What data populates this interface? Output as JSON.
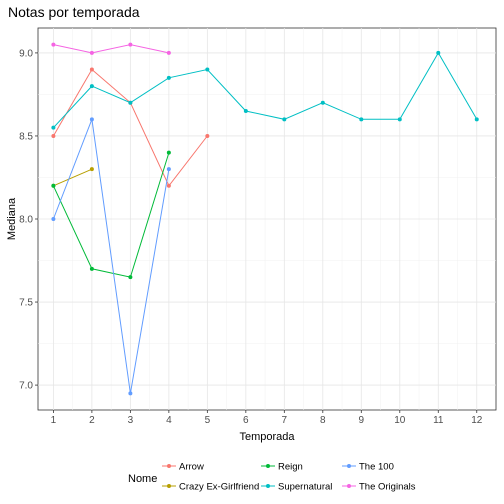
{
  "chart_data": {
    "type": "line",
    "title": "Notas por temporada",
    "xlabel": "Temporada",
    "ylabel": "Mediana",
    "xlim": [
      0.6,
      12.5
    ],
    "ylim": [
      6.85,
      9.15
    ],
    "x_ticks": [
      1,
      2,
      3,
      4,
      5,
      6,
      7,
      8,
      9,
      10,
      11,
      12
    ],
    "y_ticks": [
      7.0,
      7.5,
      8.0,
      8.5,
      9.0
    ],
    "y_tick_labels": [
      "7.0",
      "7.5",
      "8.0",
      "8.5",
      "9.0"
    ],
    "grid": true,
    "legend_position": "bottom",
    "legend_title": "Nome",
    "series": [
      {
        "name": "Arrow",
        "color": "#F8766D",
        "x": [
          1,
          2,
          3,
          4,
          5
        ],
        "y": [
          8.5,
          8.9,
          8.7,
          8.2,
          8.5
        ]
      },
      {
        "name": "Crazy Ex-Girlfriend",
        "color": "#B79F00",
        "x": [
          1,
          2
        ],
        "y": [
          8.2,
          8.3
        ]
      },
      {
        "name": "Reign",
        "color": "#00BA38",
        "x": [
          1,
          2,
          3,
          4
        ],
        "y": [
          8.2,
          7.7,
          7.65,
          8.4
        ]
      },
      {
        "name": "Supernatural",
        "color": "#00BFC4",
        "x": [
          1,
          2,
          3,
          4,
          5,
          6,
          7,
          8,
          9,
          10,
          11,
          12
        ],
        "y": [
          8.55,
          8.8,
          8.7,
          8.85,
          8.9,
          8.65,
          8.6,
          8.7,
          8.6,
          8.6,
          9.0,
          8.6
        ]
      },
      {
        "name": "The 100",
        "color": "#619CFF",
        "x": [
          1,
          2,
          3,
          4
        ],
        "y": [
          8.0,
          8.6,
          6.95,
          8.3
        ]
      },
      {
        "name": "The Originals",
        "color": "#F564E3",
        "x": [
          1,
          2,
          3,
          4
        ],
        "y": [
          9.05,
          9.0,
          9.05,
          9.0
        ]
      }
    ]
  }
}
